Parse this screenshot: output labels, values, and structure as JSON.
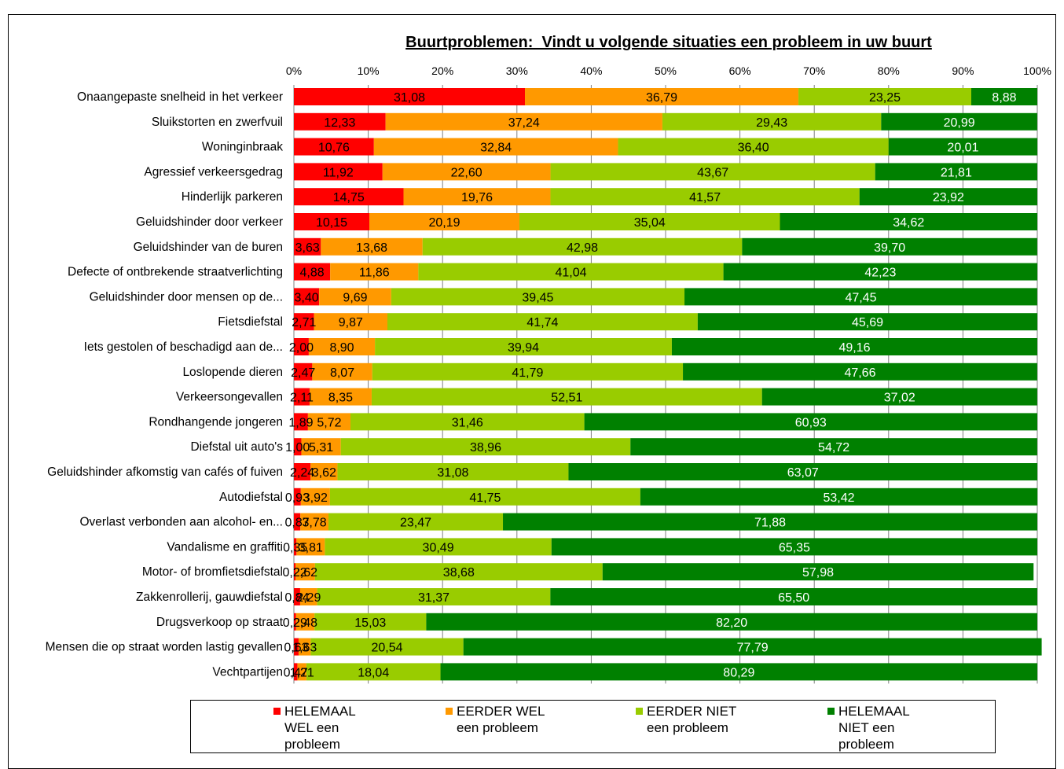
{
  "chart_data": {
    "type": "bar",
    "orientation": "horizontal",
    "stacked": "percent",
    "title": "Buurtproblemen:  Vindt u volgende situaties een probleem in uw buurt",
    "xlim": [
      0,
      100
    ],
    "x_ticks": [
      "0%",
      "10%",
      "20%",
      "30%",
      "40%",
      "50%",
      "60%",
      "70%",
      "80%",
      "90%",
      "100%"
    ],
    "grid": "vertical",
    "legend_position": "bottom",
    "categories": [
      "Onaangepaste snelheid in het verkeer",
      "Sluikstorten en zwerfvuil",
      "Woninginbraak",
      "Agressief verkeersgedrag",
      "Hinderlijk parkeren",
      "Geluidshinder door verkeer",
      "Geluidshinder van de buren",
      "Defecte of ontbrekende straatverlichting",
      "Geluidshinder door mensen op de...",
      "Fietsdiefstal",
      "Iets gestolen of beschadigd aan de...",
      "Loslopende dieren",
      "Verkeersongevallen",
      "Rondhangende jongeren",
      "Diefstal uit auto's",
      "Geluidshinder afkomstig van cafés of fuiven",
      "Autodiefstal",
      "Overlast verbonden aan alcohol- en...",
      "Vandalisme en graffiti",
      "Motor- of bromfietsdiefstal",
      "Zakkenrollerij, gauwdiefstal",
      "Drugsverkoop op straat",
      "Mensen die op straat worden lastig gevallen",
      "Vechtpartijen"
    ],
    "series": [
      {
        "name": "HELEMAAL WEL een probleem",
        "color": "#ff0000",
        "label_color": "#000000",
        "labels": [
          "31,08",
          "12,33",
          "10,76",
          "11,92",
          "14,75",
          "10,15",
          "3,63",
          "4,88",
          "3,40",
          "2,71",
          "2,00",
          "2,47",
          "2,11",
          "1,89",
          "1,00",
          "2,24",
          "0,93",
          "0,87",
          "0,35",
          "0,22",
          "0,84",
          "0,29",
          "0,63",
          "0,47"
        ],
        "values": [
          31.08,
          12.33,
          10.76,
          11.92,
          14.75,
          10.15,
          3.63,
          4.88,
          3.4,
          2.71,
          2.0,
          2.47,
          2.11,
          1.89,
          1.0,
          2.24,
          0.93,
          0.87,
          0.35,
          0.22,
          0.84,
          0.29,
          0.63,
          0.47
        ]
      },
      {
        "name": "EERDER WEL een probleem",
        "color": "#ff9900",
        "label_color": "#000000",
        "labels": [
          "36,79",
          "37,24",
          "32,84",
          "22,60",
          "19,76",
          "20,19",
          "13,68",
          "11,86",
          "9,69",
          "9,87",
          "8,90",
          "8,07",
          "8,35",
          "5,72",
          "5,31",
          "3,62",
          "3,92",
          "3,78",
          "3,81",
          "2,62",
          "2,29",
          "2,48",
          "1,63",
          "1,21"
        ],
        "values": [
          36.79,
          37.24,
          32.84,
          22.6,
          19.76,
          20.19,
          13.68,
          11.86,
          9.69,
          9.87,
          8.9,
          8.07,
          8.35,
          5.72,
          5.31,
          3.62,
          3.92,
          3.78,
          3.81,
          2.62,
          2.29,
          2.48,
          1.63,
          1.21
        ]
      },
      {
        "name": "EERDER NIET een probleem",
        "color": "#99cc00",
        "label_color": "#000000",
        "labels": [
          "23,25",
          "29,43",
          "36,40",
          "43,67",
          "41,57",
          "35,04",
          "42,98",
          "41,04",
          "39,45",
          "41,74",
          "39,94",
          "41,79",
          "52,51",
          "31,46",
          "38,96",
          "31,08",
          "41,75",
          "23,47",
          "30,49",
          "38,68",
          "31,37",
          "15,03",
          "20,54",
          "18,04"
        ],
        "values": [
          23.25,
          29.43,
          36.4,
          43.67,
          41.57,
          35.04,
          42.98,
          41.04,
          39.45,
          41.74,
          39.94,
          41.79,
          52.51,
          31.46,
          38.96,
          31.08,
          41.75,
          23.47,
          30.49,
          38.68,
          31.37,
          15.03,
          20.54,
          18.04
        ]
      },
      {
        "name": "HELEMAAL NIET een probleem",
        "color": "#008000",
        "label_color": "#ffffff",
        "labels": [
          "8,88",
          "20,99",
          "20,01",
          "21,81",
          "23,92",
          "34,62",
          "39,70",
          "42,23",
          "47,45",
          "45,69",
          "49,16",
          "47,66",
          "37,02",
          "60,93",
          "54,72",
          "63,07",
          "53,42",
          "71,88",
          "65,35",
          "57,98",
          "65,50",
          "82,20",
          "77,79",
          "80,29"
        ],
        "values": [
          8.88,
          20.99,
          20.01,
          21.81,
          23.92,
          34.62,
          39.7,
          42.23,
          47.45,
          45.69,
          49.16,
          47.66,
          37.02,
          60.93,
          54.72,
          63.07,
          53.42,
          71.88,
          65.35,
          57.98,
          65.5,
          82.2,
          77.79,
          80.29
        ]
      }
    ]
  },
  "legend": {
    "items": [
      {
        "label": "HELEMAAL WEL een probleem",
        "color": "#ff0000"
      },
      {
        "label": "EERDER WEL een probleem",
        "color": "#ff9900"
      },
      {
        "label": "EERDER NIET een probleem",
        "color": "#99cc00"
      },
      {
        "label": "HELEMAAL NIET een probleem",
        "color": "#008000"
      }
    ]
  }
}
